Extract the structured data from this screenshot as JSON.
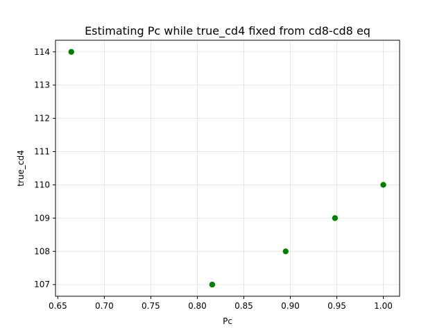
{
  "chart_data": {
    "type": "scatter",
    "title": "Estimating Pc while true_cd4 fixed from cd8-cd8 eq",
    "xlabel": "Pc",
    "ylabel": "true_cd4",
    "xlim": [
      0.6475,
      1.0175
    ],
    "ylim": [
      106.65,
      114.35
    ],
    "x_ticks": [
      0.65,
      0.7,
      0.75,
      0.8,
      0.85,
      0.9,
      0.95,
      1.0
    ],
    "x_tick_labels": [
      "0.65",
      "0.70",
      "0.75",
      "0.80",
      "0.85",
      "0.90",
      "0.95",
      "1.00"
    ],
    "y_ticks": [
      107,
      108,
      109,
      110,
      111,
      112,
      113,
      114
    ],
    "y_tick_labels": [
      "107",
      "108",
      "109",
      "110",
      "111",
      "112",
      "113",
      "114"
    ],
    "grid": true,
    "marker_color": "#008000",
    "series": [
      {
        "x": [
          0.6645,
          0.816,
          0.895,
          0.948,
          1.0
        ],
        "y": [
          114,
          107,
          108,
          109,
          110
        ]
      }
    ]
  }
}
